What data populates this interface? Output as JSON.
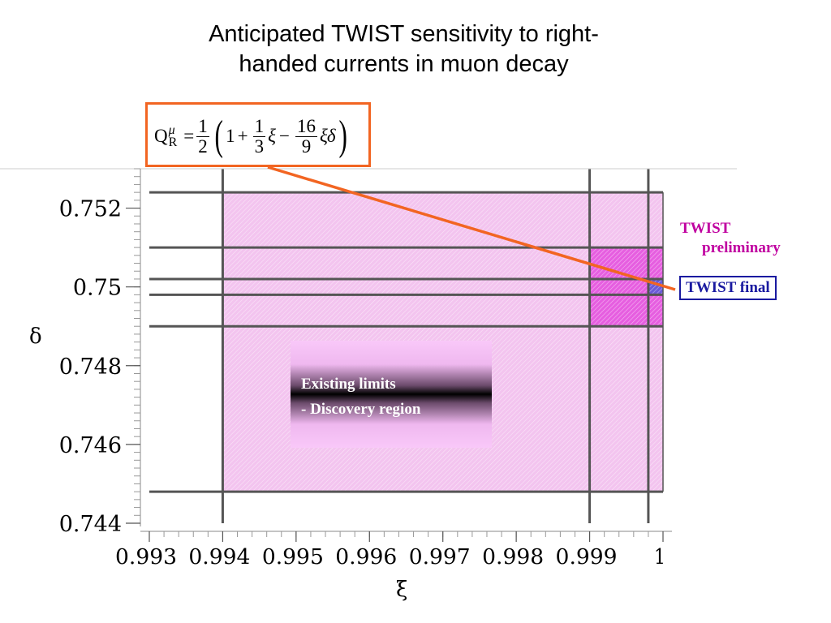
{
  "title": "Anticipated TWIST sensitivity to right-handed currents in muon decay",
  "formula": {
    "lhs": "Q",
    "lhs_sup": "μ",
    "lhs_sub": "R",
    "eq": "=",
    "f1_num": "1",
    "f1_den": "2",
    "one": "1",
    "plus": "+",
    "f2_num": "1",
    "f2_den": "3",
    "xi": "ξ",
    "minus": "−",
    "f3_num": "16",
    "f3_den": "9",
    "xidelta": "ξδ"
  },
  "annotations": {
    "preliminary_line1": "TWIST",
    "preliminary_line2": "preliminary",
    "final": "TWIST final",
    "existing_line1": "Existing limits",
    "existing_line2": "- Discovery region"
  },
  "colors": {
    "region_existing": "#f3c4ef",
    "region_preliminary": "#e65ee0",
    "region_final": "#6a5ad8",
    "lines": "#555555",
    "formula_border": "#f26522",
    "preliminary_text": "#c000a0",
    "final_text": "#1a1aa0"
  },
  "chart_data": {
    "type": "area",
    "title": "",
    "xlabel": "ξ",
    "ylabel": "δ",
    "xlim": [
      0.993,
      1.0
    ],
    "ylim": [
      0.744,
      0.753
    ],
    "x_ticks": [
      "0.993",
      "0.994",
      "0.995",
      "0.996",
      "0.997",
      "0.998",
      "0.999",
      "1"
    ],
    "y_ticks": [
      "0.744",
      "0.746",
      "0.748",
      "0.75",
      "0.752"
    ],
    "x_tick_values": [
      0.993,
      0.994,
      0.995,
      0.996,
      0.997,
      0.998,
      0.999,
      1.0
    ],
    "y_tick_values": [
      0.744,
      0.746,
      0.748,
      0.75,
      0.752
    ],
    "grid": false,
    "regions": [
      {
        "name": "Existing limits - Discovery region",
        "xmin": 0.994,
        "xmax": 1.0,
        "ymin": 0.7448,
        "ymax": 0.7524,
        "color": "#f3c4ef"
      },
      {
        "name": "TWIST preliminary",
        "xmin": 0.999,
        "xmax": 1.0,
        "ymin": 0.749,
        "ymax": 0.751,
        "color": "#e65ee0"
      },
      {
        "name": "TWIST final",
        "xmin": 0.9998,
        "xmax": 1.0,
        "ymin": 0.7498,
        "ymax": 0.7502,
        "color": "#6a5ad8"
      }
    ],
    "boundary_lines_delta": [
      0.7524,
      0.751,
      0.7502,
      0.7498,
      0.749,
      0.7448
    ],
    "boundary_lines_xi": [
      0.994,
      0.999,
      0.9998
    ]
  }
}
